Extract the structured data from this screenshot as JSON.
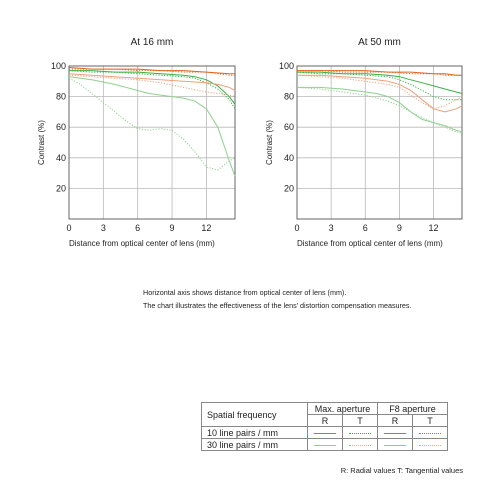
{
  "colors": {
    "max_10": "#3cb044",
    "max_30": "#8fd08f",
    "f8_10": "#e2641e",
    "f8_30": "#eca27c",
    "grid": "#b9b9b9",
    "frame": "#555555"
  },
  "notes": {
    "line1": "Horizontal axis shows distance from optical center of lens (mm).",
    "line2": "The chart illustrates the effectiveness of the lens' distortion compensation measures."
  },
  "legend": {
    "header_label": "Spatial frequency",
    "max_aperture": "Max. aperture",
    "f8_aperture": "F8 aperture",
    "r": "R",
    "t": "T",
    "row1": "10 line pairs / mm",
    "row2": "30 line pairs / mm",
    "footer": "R: Radial values  T: Tangential values"
  },
  "chart_data": [
    {
      "type": "line",
      "title": "At 16 mm",
      "xlabel": "Distance from optical center of lens (mm)",
      "ylabel": "Contrast (%)",
      "xlim": [
        0,
        14.5
      ],
      "ylim": [
        0,
        100
      ],
      "xticks": [
        0,
        3,
        6,
        9,
        12
      ],
      "yticks": [
        20,
        40,
        60,
        80,
        100
      ],
      "grid": true,
      "series": [
        {
          "name": "Max. aperture 10 lp/mm R",
          "x": [
            0,
            2,
            4,
            6,
            8,
            10,
            11,
            12,
            13,
            14,
            14.5
          ],
          "y": [
            97,
            97,
            96,
            96,
            95,
            94,
            93,
            91,
            87,
            80,
            75
          ]
        },
        {
          "name": "Max. aperture 10 lp/mm T",
          "x": [
            0,
            2,
            4,
            6,
            8,
            10,
            11,
            12,
            13,
            14,
            14.5
          ],
          "y": [
            97,
            96,
            96,
            95,
            94,
            93,
            92,
            89,
            85,
            78,
            72
          ]
        },
        {
          "name": "Max. aperture 30 lp/mm R",
          "x": [
            0,
            2,
            4,
            6,
            7,
            8,
            9,
            10,
            11,
            12,
            13,
            14,
            14.5
          ],
          "y": [
            93,
            91,
            88,
            84,
            82,
            81,
            80,
            79,
            77,
            72,
            60,
            38,
            28
          ]
        },
        {
          "name": "Max. aperture 30 lp/mm T",
          "x": [
            0,
            1,
            2,
            3,
            4,
            5,
            6,
            7,
            8,
            9,
            10,
            11,
            12,
            13,
            14,
            14.5
          ],
          "y": [
            92,
            88,
            82,
            76,
            70,
            64,
            59,
            58,
            59,
            58,
            52,
            44,
            34,
            32,
            38,
            40
          ]
        },
        {
          "name": "F8 aperture 10 lp/mm R",
          "x": [
            0,
            2,
            4,
            6,
            8,
            10,
            12,
            14,
            14.5
          ],
          "y": [
            99,
            98,
            98,
            98,
            97,
            97,
            96,
            95,
            95
          ]
        },
        {
          "name": "F8 aperture 10 lp/mm T",
          "x": [
            0,
            2,
            4,
            6,
            8,
            10,
            12,
            14,
            14.5
          ],
          "y": [
            98,
            98,
            98,
            97,
            97,
            96,
            96,
            94,
            94
          ]
        },
        {
          "name": "F8 aperture 30 lp/mm R",
          "x": [
            0,
            2,
            4,
            6,
            8,
            10,
            12,
            13,
            14,
            14.5
          ],
          "y": [
            95,
            94,
            93,
            92,
            91,
            90,
            89,
            88,
            86,
            84
          ]
        },
        {
          "name": "F8 aperture 30 lp/mm T",
          "x": [
            0,
            2,
            4,
            6,
            8,
            10,
            12,
            13,
            14,
            14.5
          ],
          "y": [
            94,
            93,
            92,
            91,
            89,
            86,
            83,
            82,
            81,
            80
          ]
        }
      ]
    },
    {
      "type": "line",
      "title": "At 50 mm",
      "xlabel": "Distance from optical center of lens (mm)",
      "ylabel": "Contrast (%)",
      "xlim": [
        0,
        14.5
      ],
      "ylim": [
        0,
        100
      ],
      "xticks": [
        0,
        3,
        6,
        9,
        12
      ],
      "yticks": [
        20,
        40,
        60,
        80,
        100
      ],
      "grid": true,
      "series": [
        {
          "name": "Max. aperture 10 lp/mm R",
          "x": [
            0,
            2,
            4,
            6,
            8,
            9,
            10,
            11,
            12,
            13,
            14,
            14.5
          ],
          "y": [
            96,
            96,
            95,
            95,
            94,
            93,
            91,
            89,
            87,
            85,
            83,
            82
          ]
        },
        {
          "name": "Max. aperture 10 lp/mm T",
          "x": [
            0,
            2,
            4,
            6,
            8,
            9,
            10,
            11,
            12,
            13,
            14,
            14.5
          ],
          "y": [
            96,
            95,
            95,
            94,
            93,
            91,
            88,
            84,
            80,
            78,
            78,
            78
          ]
        },
        {
          "name": "Max. aperture 30 lp/mm R",
          "x": [
            0,
            2,
            4,
            6,
            7,
            8,
            9,
            10,
            11,
            12,
            13,
            14,
            14.5
          ],
          "y": [
            86,
            86,
            85,
            83,
            82,
            80,
            76,
            70,
            65,
            63,
            61,
            58,
            57
          ]
        },
        {
          "name": "Max. aperture 30 lp/mm T",
          "x": [
            0,
            2,
            4,
            6,
            7,
            8,
            9,
            10,
            11,
            12,
            13,
            14,
            14.5
          ],
          "y": [
            86,
            85,
            83,
            81,
            79,
            77,
            74,
            70,
            66,
            63,
            60,
            57,
            56
          ]
        },
        {
          "name": "F8 aperture 10 lp/mm R",
          "x": [
            0,
            2,
            4,
            6,
            8,
            10,
            12,
            13,
            14,
            14.5
          ],
          "y": [
            97,
            97,
            97,
            97,
            96,
            96,
            95,
            95,
            94,
            94
          ]
        },
        {
          "name": "F8 aperture 10 lp/mm T",
          "x": [
            0,
            2,
            4,
            6,
            8,
            10,
            12,
            13,
            14,
            14.5
          ],
          "y": [
            97,
            97,
            96,
            96,
            96,
            95,
            95,
            94,
            94,
            94
          ]
        },
        {
          "name": "F8 aperture 30 lp/mm R",
          "x": [
            0,
            2,
            4,
            6,
            8,
            9,
            10,
            11,
            12,
            13,
            14,
            14.5
          ],
          "y": [
            94,
            94,
            93,
            92,
            90,
            88,
            84,
            78,
            72,
            70,
            72,
            74
          ]
        },
        {
          "name": "F8 aperture 30 lp/mm T",
          "x": [
            0,
            2,
            4,
            6,
            8,
            9,
            10,
            11,
            12,
            13,
            14,
            14.5
          ],
          "y": [
            94,
            93,
            92,
            90,
            88,
            86,
            81,
            76,
            72,
            74,
            78,
            80
          ]
        }
      ]
    }
  ]
}
